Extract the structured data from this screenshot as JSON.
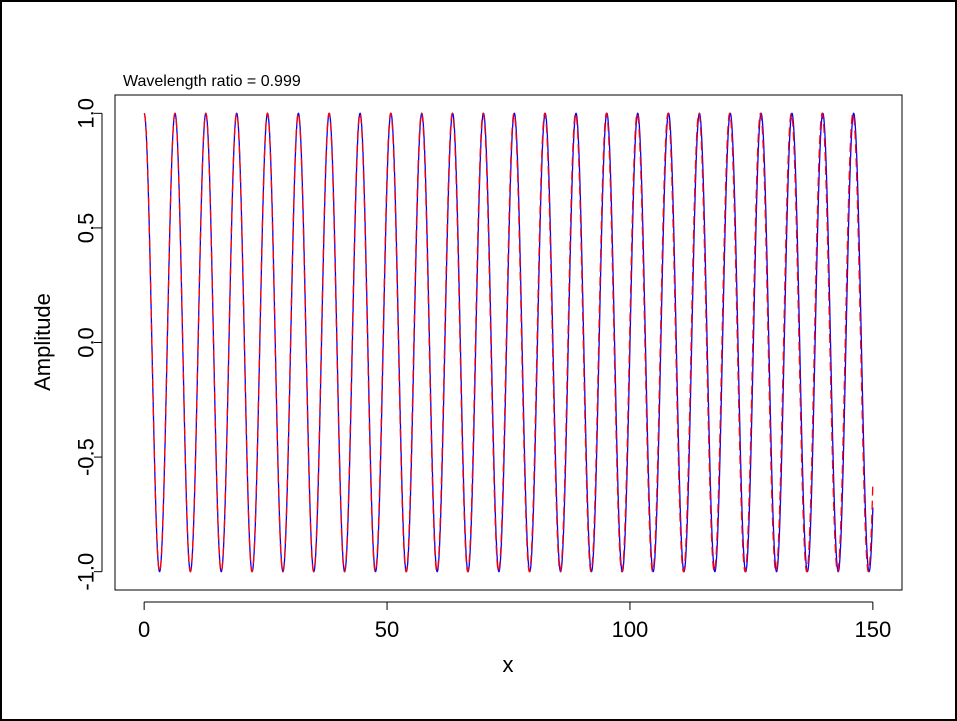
{
  "chart_data": {
    "type": "line",
    "title": "Wavelength ratio = 0.999",
    "xlabel": "x",
    "ylabel": "Amplitude",
    "xlim": [
      -6,
      156
    ],
    "ylim": [
      -1.08,
      1.08
    ],
    "x_ticks": [
      "0",
      "50",
      "100",
      "150"
    ],
    "y_ticks": [
      "-1.0",
      "-0.5",
      "0.0",
      "0.5",
      "1.0"
    ],
    "grid": false,
    "legend": "none",
    "x_range": [
      0,
      150
    ],
    "series": [
      {
        "function": "cos(2*pi*x/6.35)",
        "wavelength": 6.35,
        "color": "#0000ff",
        "style": "solid"
      },
      {
        "function": "cos(2*pi*x/(6.35*0.999))",
        "wavelength": 6.34365,
        "color": "#ff0000",
        "style": "dashed"
      }
    ]
  }
}
